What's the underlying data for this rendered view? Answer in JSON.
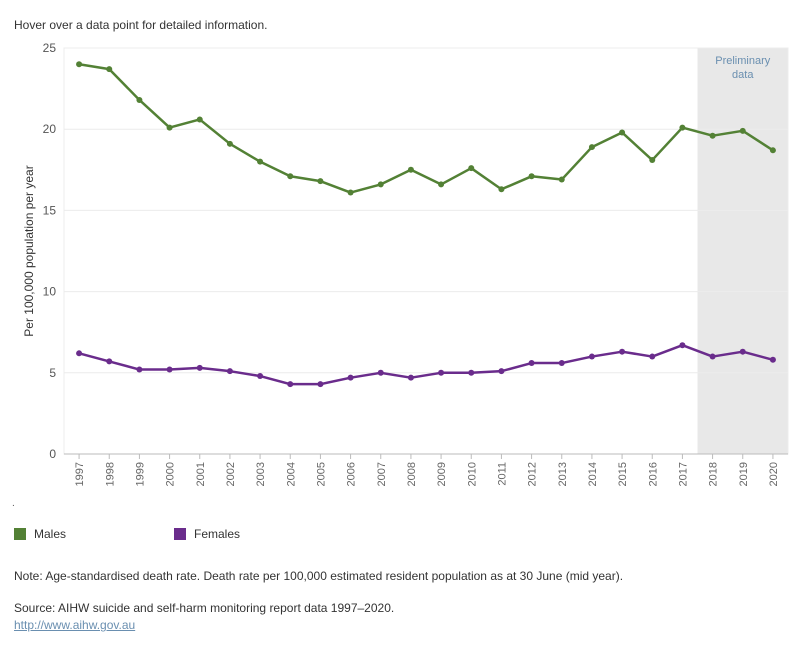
{
  "hint": "Hover over a data point for detailed information.",
  "dot_mark": ".",
  "chart_data": {
    "type": "line",
    "title": "",
    "xlabel": "",
    "ylabel": "Per 100,000 population per year",
    "x": [
      1997,
      1998,
      1999,
      2000,
      2001,
      2002,
      2003,
      2004,
      2005,
      2006,
      2007,
      2008,
      2009,
      2010,
      2011,
      2012,
      2013,
      2014,
      2015,
      2016,
      2017,
      2018,
      2019,
      2020
    ],
    "ylim": [
      0,
      25
    ],
    "yticks": [
      0,
      5,
      10,
      15,
      20,
      25
    ],
    "grid": true,
    "legend_position": "bottom",
    "shaded_region": {
      "from": 2018,
      "to": 2020,
      "label_lines": [
        "Preliminary",
        "data"
      ],
      "color": "#e8e8e8",
      "label_color": "#6a8fb0"
    },
    "series": [
      {
        "name": "Males",
        "color": "#538135",
        "values": [
          24.0,
          23.7,
          21.8,
          20.1,
          20.6,
          19.1,
          18.0,
          17.1,
          16.8,
          16.1,
          16.6,
          17.5,
          16.6,
          17.6,
          16.3,
          17.1,
          16.9,
          18.9,
          19.8,
          18.1,
          20.1,
          19.6,
          19.9,
          18.7
        ]
      },
      {
        "name": "Females",
        "color": "#6a2c8c",
        "values": [
          6.2,
          5.7,
          5.2,
          5.2,
          5.3,
          5.1,
          4.8,
          4.3,
          4.3,
          4.7,
          5.0,
          4.7,
          5.0,
          5.0,
          5.1,
          5.6,
          5.6,
          6.0,
          6.3,
          6.0,
          6.7,
          6.0,
          6.3,
          5.8
        ]
      }
    ]
  },
  "legend": [
    {
      "label": "Males",
      "color": "#538135"
    },
    {
      "label": "Females",
      "color": "#6a2c8c"
    }
  ],
  "note": "Note: Age-standardised death rate. Death rate per 100,000 estimated resident population as at 30 June (mid year).",
  "source": "Source: AIHW suicide and self-harm monitoring report data 1997–2020.",
  "source_link": "http://www.aihw.gov.au"
}
